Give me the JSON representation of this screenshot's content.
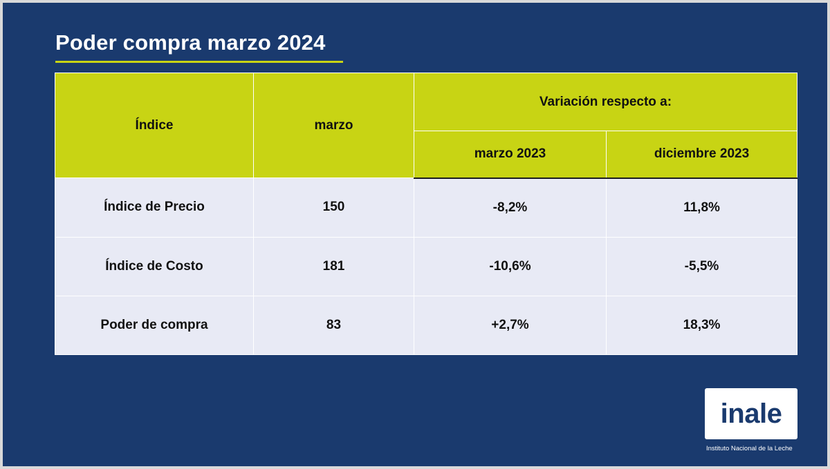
{
  "slide": {
    "title": "Poder compra marzo 2024"
  },
  "table": {
    "header": {
      "col_index": "Índice",
      "col_month": "marzo",
      "variation_group": "Variación respecto a:",
      "col_var1": "marzo 2023",
      "col_var2": "diciembre 2023"
    },
    "rows": [
      {
        "label": "Índice de Precio",
        "value": "150",
        "var1": "-8,2%",
        "var2": "11,8%"
      },
      {
        "label": "Índice de Costo",
        "value": "181",
        "var1": "-10,6%",
        "var2": "-5,5%"
      },
      {
        "label": "Poder de compra",
        "value": "83",
        "var1": "+2,7%",
        "var2": "18,3%"
      }
    ]
  },
  "logo": {
    "text": "inale",
    "subtitle": "Instituto Nacional de la Leche"
  },
  "colors": {
    "background": "#1a3a6e",
    "accent": "#c8d414",
    "row_fill": "#e8eaf5"
  }
}
